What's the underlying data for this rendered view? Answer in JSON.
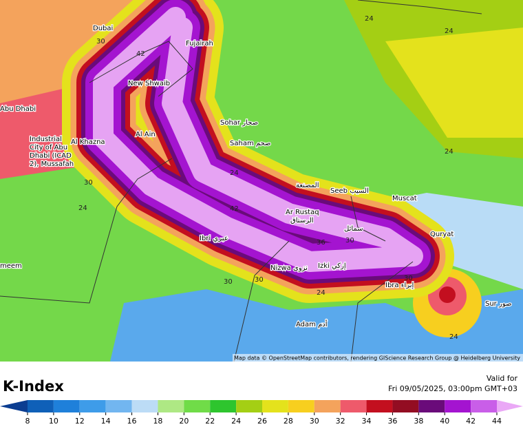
{
  "map": {
    "cities": [
      "Dubai",
      "Fujairah",
      "Abu Dhabi",
      "New Shwaib",
      "Sohar صحار",
      "Saham صحم",
      "Al Ain",
      "Al Khazna",
      "Industrial",
      "City of Abu",
      "Dhabi (ICAD",
      "2), Mussafah",
      "المصنعة",
      "Seeb السيب",
      "Muscat",
      "Ar Rustaq",
      "الرستاق",
      "سمائل",
      "Quryat",
      "Ibri عبري",
      "Nizwa نزوى",
      "Izki إزكي",
      "Ibra إبراء",
      "Sur صور",
      "Adam أدم",
      "meem"
    ],
    "contour_labels": [
      24,
      24,
      24,
      24,
      24,
      24,
      24,
      30,
      30,
      30,
      30,
      30,
      30,
      36,
      42,
      42
    ],
    "attribution": "Map data © OpenStreetMap contributors, rendering GIScience Research Group @ Heidelberg University"
  },
  "legend": {
    "title": "K-Index",
    "valid_label": "Valid for",
    "valid_time": "Fri 09/05/2025, 03:00pm GMT+03",
    "ticks": [
      8,
      10,
      12,
      14,
      16,
      18,
      20,
      22,
      24,
      26,
      28,
      30,
      32,
      34,
      36,
      38,
      40,
      42,
      44
    ],
    "colors": [
      "#0b3d91",
      "#0f60b8",
      "#1f80da",
      "#3e9ce9",
      "#72b6f0",
      "#bcdcf6",
      "#aee884",
      "#70dc48",
      "#2ec52e",
      "#a4cf14",
      "#e4e21c",
      "#f7cf1f",
      "#f4a35c",
      "#ee5a6b",
      "#c30f1f",
      "#930d22",
      "#6a0b7a",
      "#a414d0",
      "#c95ee8",
      "#eaa8f6"
    ]
  }
}
